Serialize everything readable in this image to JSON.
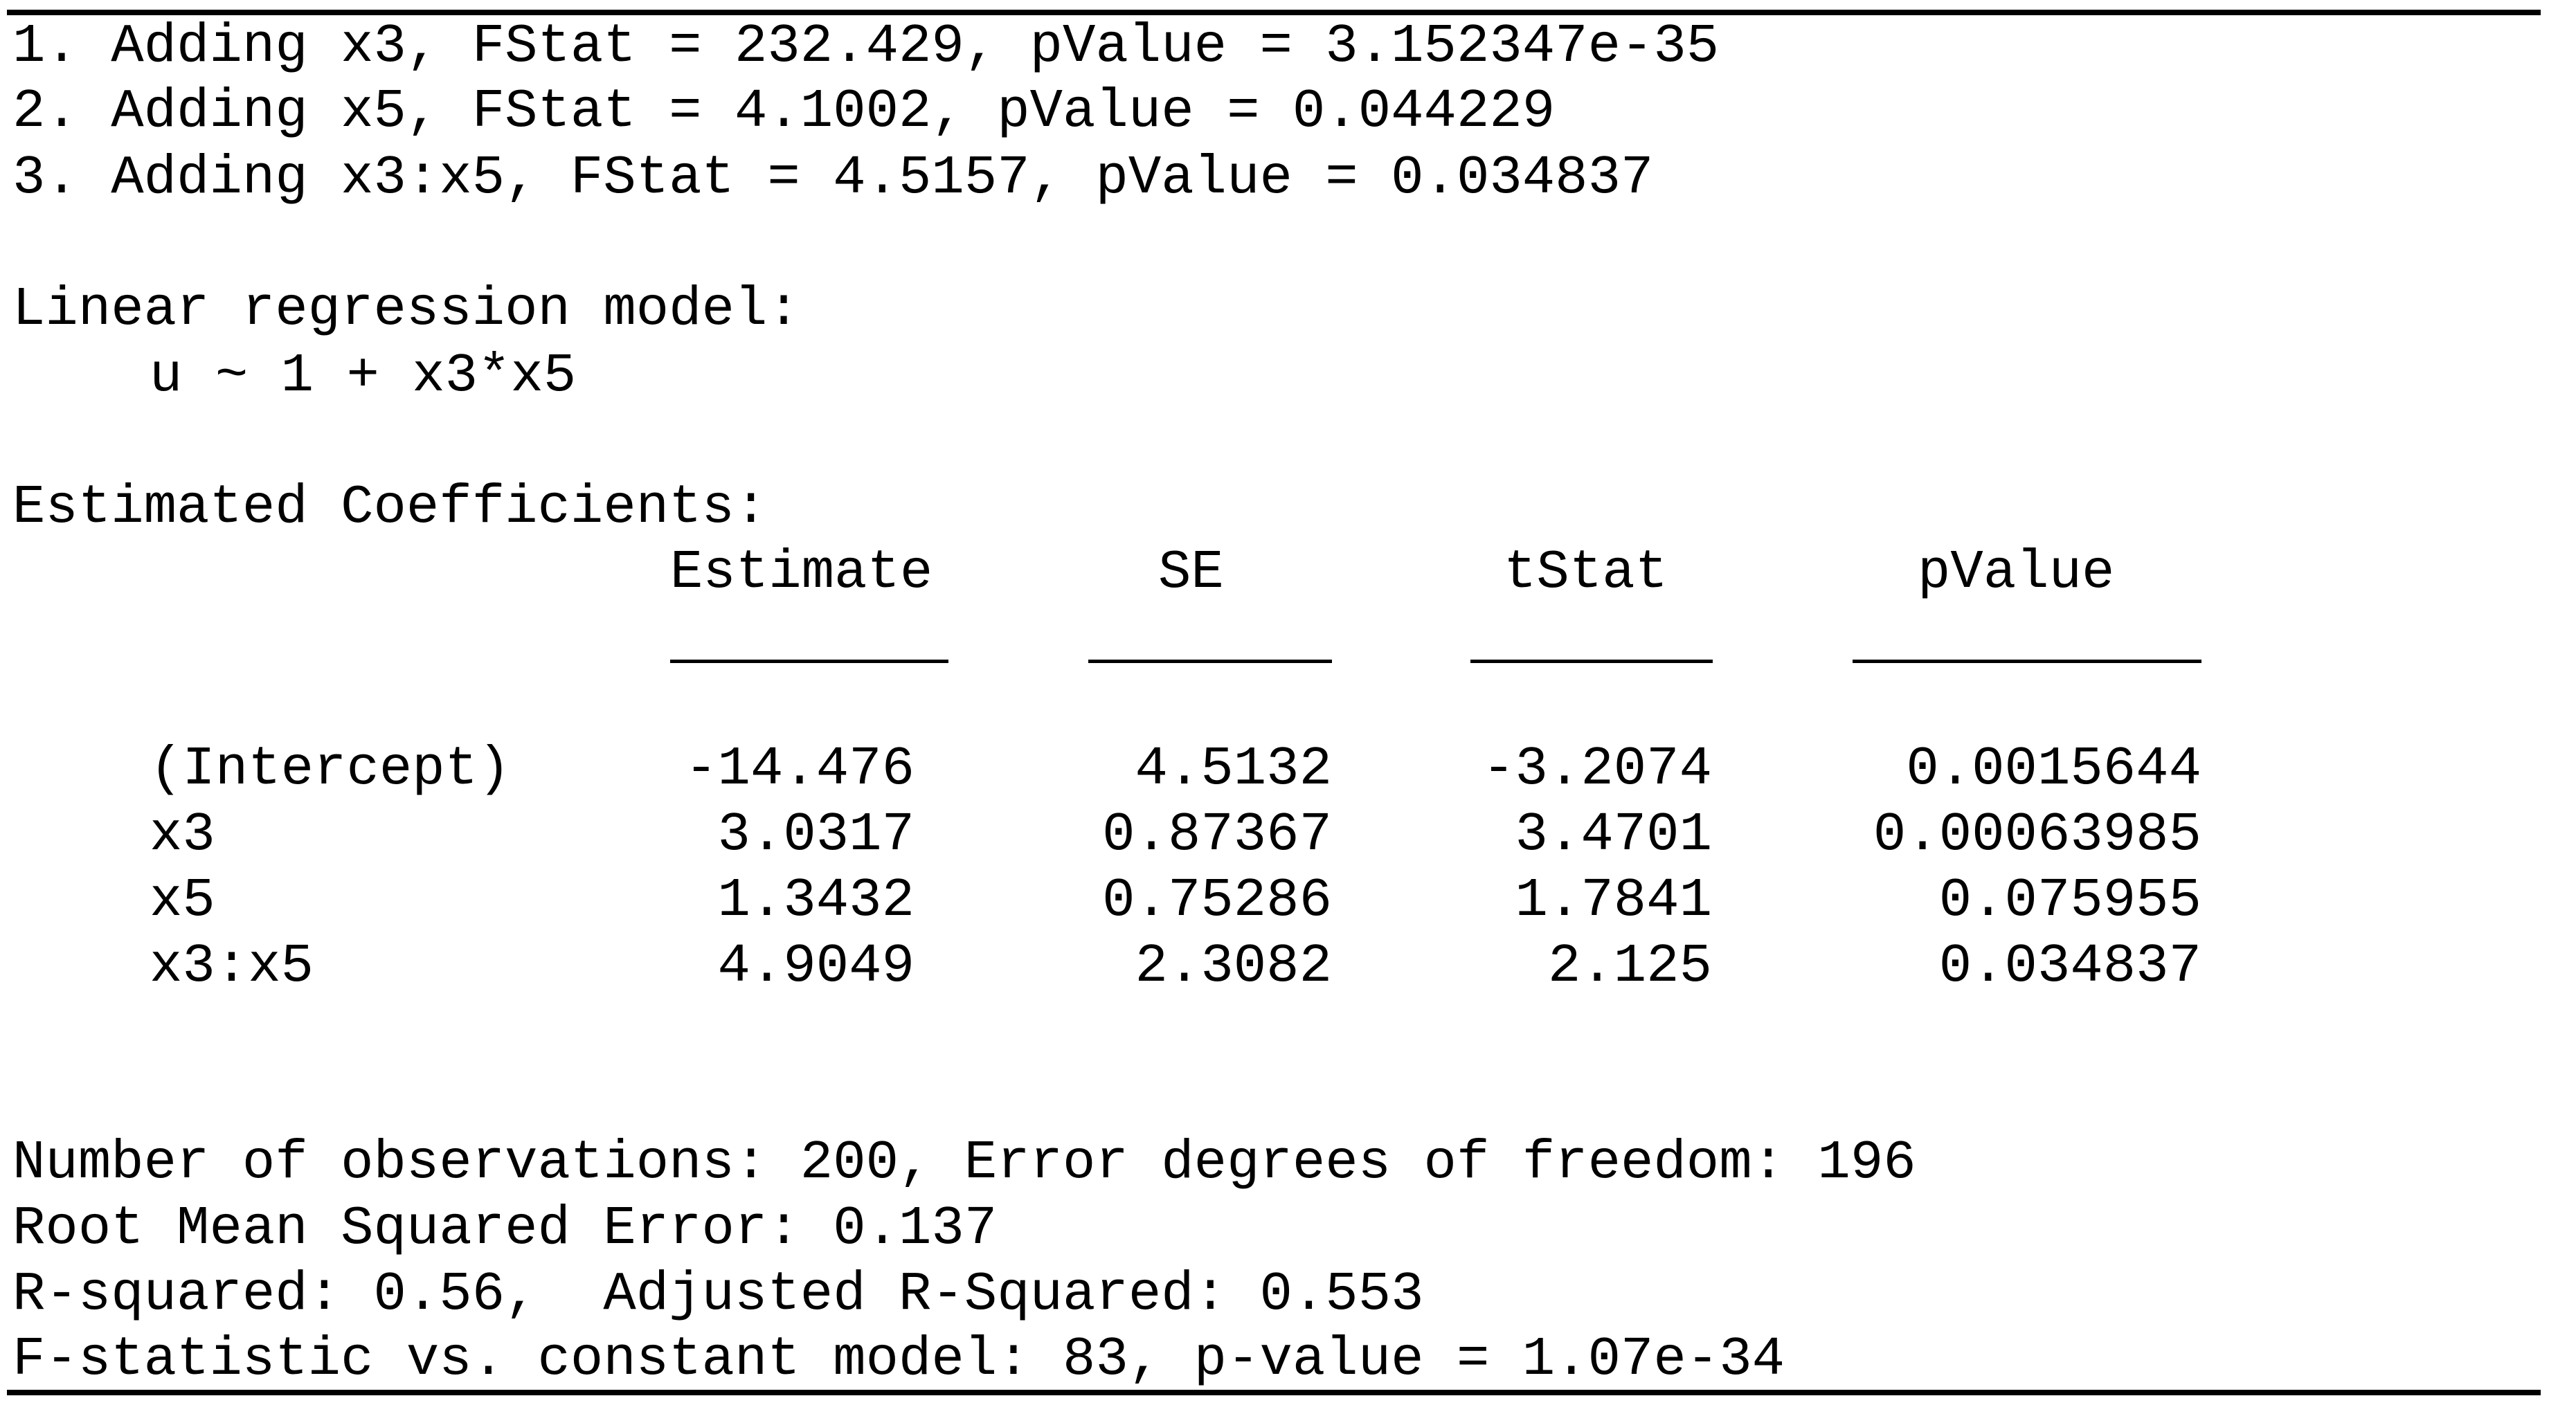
{
  "steps": [
    "1. Adding x3, FStat = 232.429, pValue = 3.152347e-35",
    "2. Adding x5, FStat = 4.1002, pValue = 0.044229",
    "3. Adding x3:x5, FStat = 4.5157, pValue = 0.034837"
  ],
  "model": {
    "title": "Linear regression model:",
    "formula": "u ~ 1 + x3*x5"
  },
  "coefficients": {
    "title": "Estimated Coefficients:",
    "headers": [
      "Estimate",
      "SE",
      "tStat",
      "pValue"
    ],
    "rows": [
      {
        "name": "(Intercept)",
        "estimate": "-14.476",
        "se": "4.5132",
        "tstat": "-3.2074",
        "pvalue": "0.0015644"
      },
      {
        "name": "x3",
        "estimate": "3.0317",
        "se": "0.87367",
        "tstat": "3.4701",
        "pvalue": "0.00063985"
      },
      {
        "name": "x5",
        "estimate": "1.3432",
        "se": "0.75286",
        "tstat": "1.7841",
        "pvalue": "0.075955"
      },
      {
        "name": "x3:x5",
        "estimate": "4.9049",
        "se": "2.3082",
        "tstat": "2.125",
        "pvalue": "0.034837"
      }
    ]
  },
  "summary": [
    "Number of observations: 200, Error degrees of freedom: 196",
    "Root Mean Squared Error: 0.137",
    "R-squared: 0.56,  Adjusted R-Squared: 0.553",
    "F-statistic vs. constant model: 83, p-value = 1.07e-34"
  ]
}
